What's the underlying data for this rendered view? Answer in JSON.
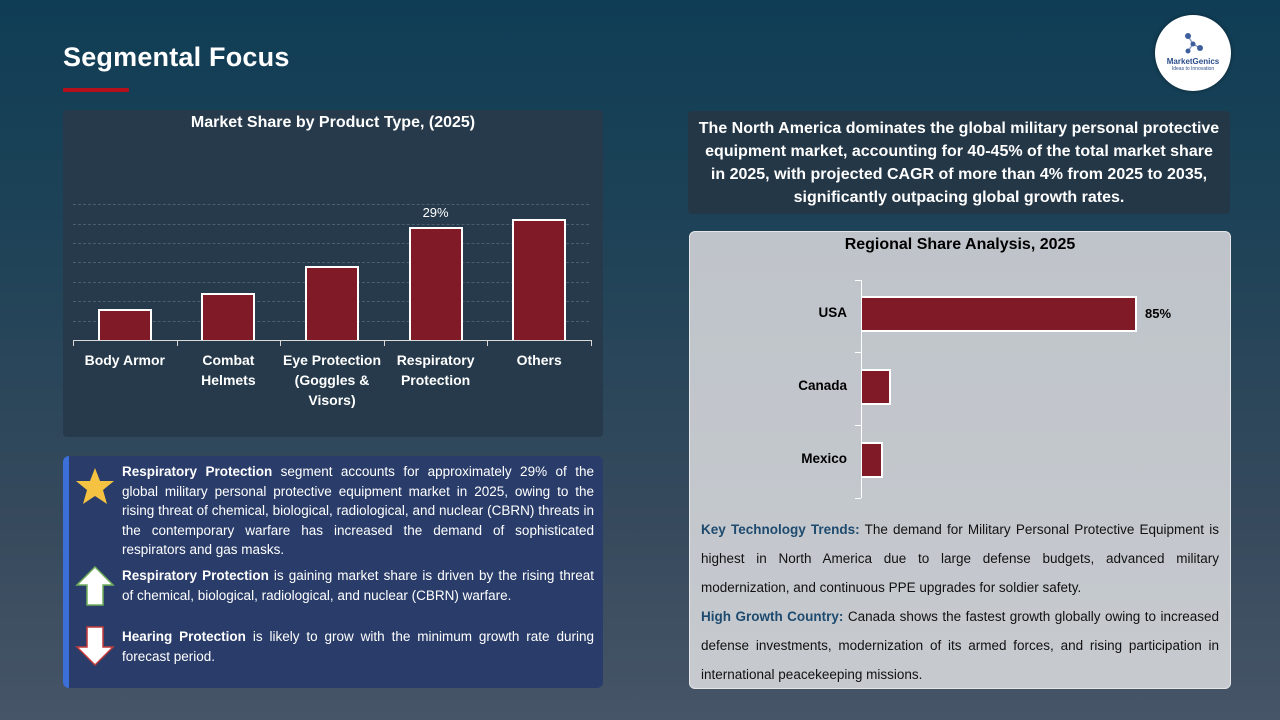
{
  "header": {
    "title": "Segmental Focus",
    "logo": {
      "name": "MarketGenics",
      "tagline": "Ideas to Innovation"
    }
  },
  "product_chart": {
    "title": "Market Share by Product Type, (2025)",
    "data_label": "29%"
  },
  "bullets": [
    {
      "icon": "star-icon",
      "bold": "Respiratory Protection",
      "text": " segment accounts for approximately 29% of the global military personal protective equipment market in 2025, owing to the rising threat of chemical, biological, radiological, and nuclear (CBRN) threats in the contemporary warfare has increased the demand of sophisticated respirators and gas masks."
    },
    {
      "icon": "arrow-up-icon",
      "bold": "Respiratory Protection",
      "text": " is gaining market share is driven by the rising threat of chemical, biological, radiological, and nuclear (CBRN) warfare."
    },
    {
      "icon": "arrow-down-icon",
      "bold": "Hearing Protection",
      "text": " is likely to grow with the minimum growth rate during forecast period."
    }
  ],
  "summary": {
    "text": "The North America dominates the global military personal protective equipment market, accounting for 40-45% of the total market share in 2025, with projected CAGR of more than 4% from 2025 to 2035, significantly outpacing global growth rates."
  },
  "regional": {
    "title": "Regional Share Analysis, 2025",
    "value_label": "85%",
    "trends_label": "Key Technology Trends:",
    "trends_text": " The demand for Military Personal Protective Equipment is highest in North America due to large defense budgets, advanced military modernization, and continuous PPE upgrades for soldier safety.",
    "growth_label": "High Growth Country:",
    "growth_text": " Canada shows the fastest growth globally owing to increased defense investments, modernization of its armed forces, and rising participation in international peacekeeping missions."
  },
  "colors": {
    "bar": "#7f1a26",
    "accent_red": "#b4101c",
    "accent_blue": "#3c6fd8",
    "keyword": "#1d4a6e"
  },
  "chart_data": [
    {
      "type": "bar",
      "title": "Market Share by Product Type, (2025)",
      "categories": [
        "Body Armor",
        "Combat Helmets",
        "Eye Protection (Goggles & Visors)",
        "Respiratory Protection",
        "Others"
      ],
      "values": [
        8,
        12,
        19,
        29,
        31
      ],
      "data_labels": {
        "Respiratory Protection": "29%"
      },
      "xlabel": "",
      "ylabel": "",
      "ylim": [
        0,
        35
      ],
      "grid": true,
      "legend": "none"
    },
    {
      "type": "bar",
      "orientation": "horizontal",
      "title": "Regional Share Analysis, 2025",
      "categories": [
        "USA",
        "Canada",
        "Mexico"
      ],
      "values": [
        85,
        9,
        6.5
      ],
      "data_labels": {
        "USA": "85%"
      },
      "xlabel": "",
      "ylabel": "",
      "xlim": [
        0,
        100
      ],
      "grid": false,
      "legend": "none"
    }
  ]
}
